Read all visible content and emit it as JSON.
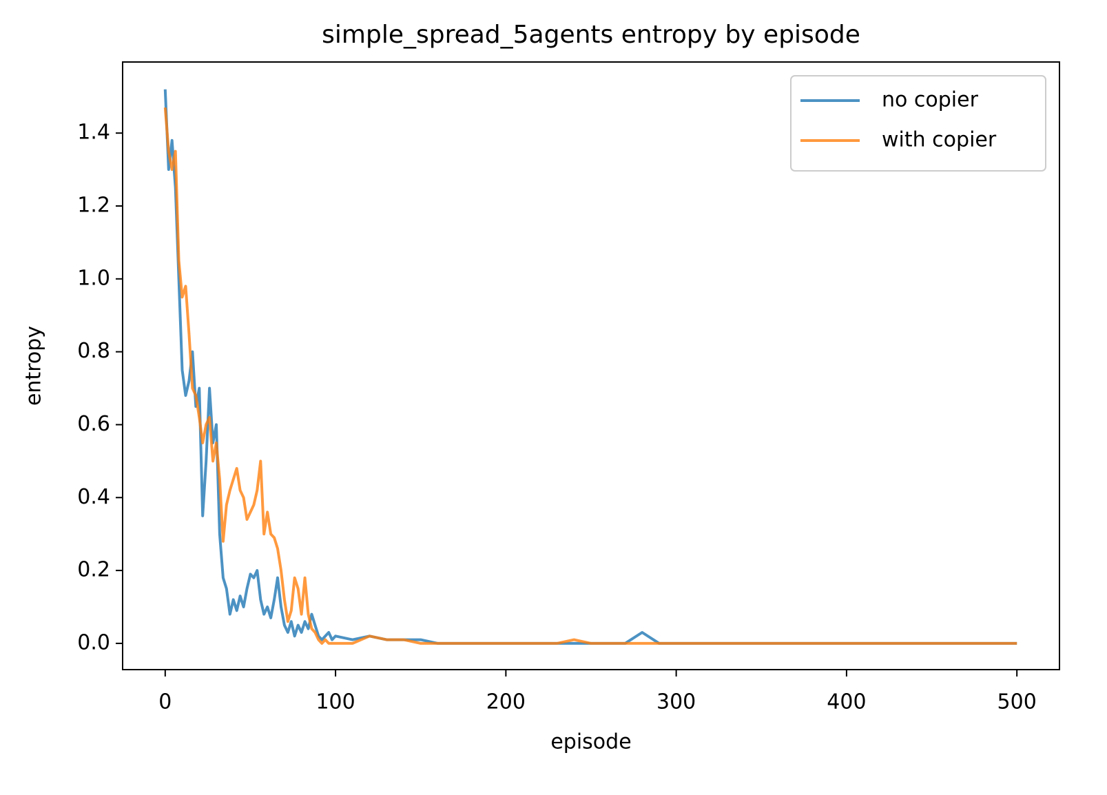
{
  "chart_data": {
    "type": "line",
    "title": "simple_spread_5agents entropy by episode",
    "x_label": "episode",
    "y_label": "entropy",
    "x": [
      0,
      2,
      4,
      6,
      8,
      10,
      12,
      14,
      16,
      18,
      20,
      22,
      24,
      26,
      28,
      30,
      32,
      34,
      36,
      38,
      40,
      42,
      44,
      46,
      48,
      50,
      52,
      54,
      56,
      58,
      60,
      62,
      64,
      66,
      68,
      70,
      72,
      74,
      76,
      78,
      80,
      82,
      84,
      86,
      88,
      90,
      92,
      94,
      96,
      98,
      100,
      110,
      120,
      130,
      140,
      150,
      160,
      170,
      180,
      190,
      200,
      210,
      220,
      230,
      240,
      250,
      260,
      270,
      280,
      290,
      300,
      310,
      320,
      330,
      340,
      350,
      360,
      370,
      380,
      390,
      400,
      410,
      420,
      430,
      440,
      450,
      460,
      470,
      480,
      490,
      500
    ],
    "series": [
      {
        "name": "no copier",
        "color": "#1f77b4",
        "values": [
          1.52,
          1.3,
          1.38,
          1.25,
          1.0,
          0.75,
          0.68,
          0.72,
          0.8,
          0.65,
          0.7,
          0.35,
          0.5,
          0.7,
          0.55,
          0.6,
          0.3,
          0.18,
          0.15,
          0.08,
          0.12,
          0.09,
          0.13,
          0.1,
          0.15,
          0.19,
          0.18,
          0.2,
          0.12,
          0.08,
          0.1,
          0.07,
          0.12,
          0.18,
          0.1,
          0.05,
          0.03,
          0.06,
          0.02,
          0.05,
          0.03,
          0.06,
          0.04,
          0.08,
          0.05,
          0.02,
          0.01,
          0.02,
          0.03,
          0.01,
          0.02,
          0.01,
          0.02,
          0.01,
          0.01,
          0.01,
          0,
          0,
          0,
          0,
          0,
          0,
          0,
          0,
          0,
          0,
          0,
          0,
          0.03,
          0,
          0,
          0,
          0,
          0,
          0,
          0,
          0,
          0,
          0,
          0,
          0,
          0,
          0,
          0,
          0,
          0,
          0,
          0,
          0,
          0,
          0
        ]
      },
      {
        "name": "with copier",
        "color": "#ff7f0e",
        "values": [
          1.47,
          1.35,
          1.3,
          1.35,
          1.05,
          0.95,
          0.98,
          0.85,
          0.7,
          0.68,
          0.62,
          0.55,
          0.6,
          0.62,
          0.5,
          0.55,
          0.45,
          0.28,
          0.38,
          0.42,
          0.45,
          0.48,
          0.42,
          0.4,
          0.34,
          0.36,
          0.38,
          0.42,
          0.5,
          0.3,
          0.36,
          0.3,
          0.29,
          0.26,
          0.2,
          0.12,
          0.06,
          0.09,
          0.18,
          0.15,
          0.08,
          0.18,
          0.08,
          0.04,
          0.03,
          0.01,
          0,
          0.01,
          0,
          0,
          0,
          0,
          0.02,
          0.01,
          0.01,
          0,
          0,
          0,
          0,
          0,
          0,
          0,
          0,
          0,
          0.01,
          0,
          0,
          0,
          0,
          0,
          0,
          0,
          0,
          0,
          0,
          0,
          0,
          0,
          0,
          0,
          0,
          0,
          0,
          0,
          0,
          0,
          0,
          0,
          0,
          0,
          0
        ]
      }
    ],
    "xlim": [
      -25,
      525
    ],
    "xticks": [
      0,
      100,
      200,
      300,
      400,
      500
    ],
    "ylim": [
      -0.072,
      1.595
    ],
    "yticks": [
      {
        "value": 0,
        "label": "0.0"
      },
      0.2,
      0.4,
      0.6,
      0.8,
      {
        "value": 1,
        "label": "1.0"
      },
      1.2,
      1.4
    ],
    "legend": "upper right",
    "grid": false
  }
}
